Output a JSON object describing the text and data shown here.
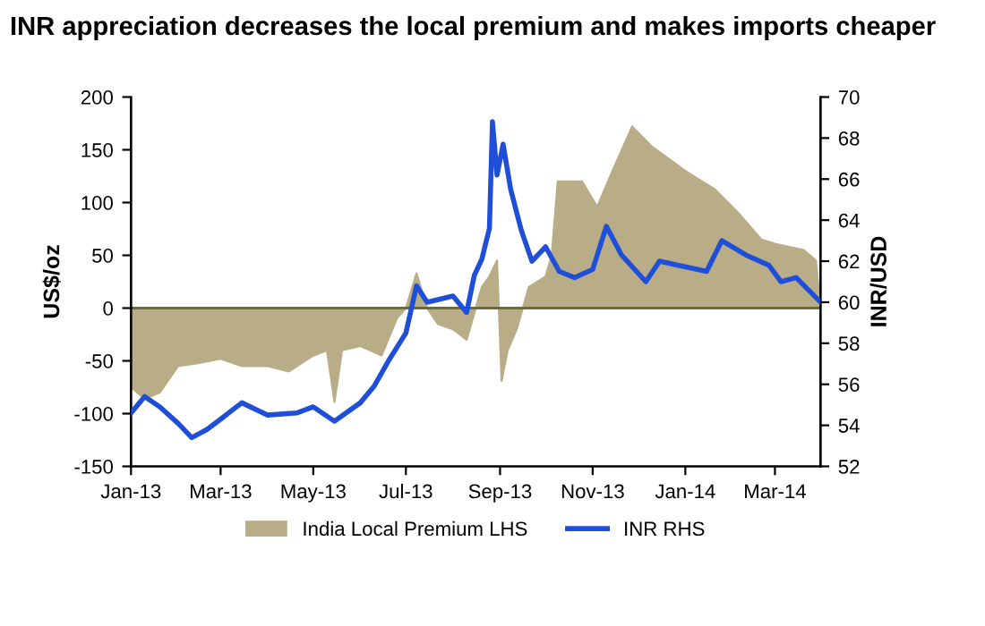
{
  "chart_data": {
    "type": "area",
    "title": "INR appreciation decreases the local premium and makes imports cheaper",
    "ylabel": "US$/oz",
    "y2label": "INR/USD",
    "xlim": [
      "2013-01-01",
      "2014-03-31"
    ],
    "xticks": [
      {
        "value": "2013-01-01",
        "label": "Jan-13"
      },
      {
        "value": "2013-03-01",
        "label": "Mar-13"
      },
      {
        "value": "2013-05-01",
        "label": "May-13"
      },
      {
        "value": "2013-07-01",
        "label": "Jul-13"
      },
      {
        "value": "2013-09-01",
        "label": "Sep-13"
      },
      {
        "value": "2013-11-01",
        "label": "Nov-13"
      },
      {
        "value": "2014-01-01",
        "label": "Jan-14"
      },
      {
        "value": "2014-03-01",
        "label": "Mar-14"
      }
    ],
    "ylim": [
      -150,
      200
    ],
    "yticks": [
      -150,
      -100,
      -50,
      0,
      50,
      100,
      150,
      200
    ],
    "y2lim": [
      52,
      70
    ],
    "y2ticks": [
      52,
      54,
      56,
      58,
      60,
      62,
      64,
      66,
      68,
      70
    ],
    "series": [
      {
        "name": "India Local Premium LHS",
        "color": "#b8ad86",
        "x": [
          "2013-01-01",
          "2013-01-10",
          "2013-01-20",
          "2013-02-01",
          "2013-02-15",
          "2013-03-01",
          "2013-03-15",
          "2013-04-01",
          "2013-04-15",
          "2013-05-01",
          "2013-05-10",
          "2013-05-15",
          "2013-05-20",
          "2013-06-01",
          "2013-06-15",
          "2013-06-25",
          "2013-07-01",
          "2013-07-08",
          "2013-07-15",
          "2013-07-22",
          "2013-08-01",
          "2013-08-10",
          "2013-08-20",
          "2013-08-25",
          "2013-08-30",
          "2013-09-02",
          "2013-09-06",
          "2013-09-12",
          "2013-09-20",
          "2013-10-01",
          "2013-10-05",
          "2013-10-09",
          "2013-10-25",
          "2013-11-04",
          "2013-11-14",
          "2013-11-27",
          "2013-12-10",
          "2014-01-01",
          "2014-01-20",
          "2014-02-05",
          "2014-02-20",
          "2014-03-01",
          "2014-03-20",
          "2014-03-28",
          "2014-03-31"
        ],
        "values": [
          -75,
          -86,
          -80,
          -55,
          -52,
          -48,
          -55,
          -55,
          -60,
          -45,
          -40,
          -89,
          -40,
          -36,
          -45,
          -10,
          0,
          33,
          0,
          -15,
          -20,
          -30,
          20,
          30,
          45,
          -69,
          -40,
          -20,
          20,
          30,
          50,
          120,
          120,
          96,
          130,
          172,
          153,
          130,
          113,
          90,
          65,
          61,
          55,
          45,
          0
        ]
      },
      {
        "name": "INR RHS",
        "type": "line",
        "axis": "y2",
        "color": "#1f4fd8",
        "x": [
          "2013-01-01",
          "2013-01-10",
          "2013-01-20",
          "2013-02-01",
          "2013-02-10",
          "2013-02-20",
          "2013-03-01",
          "2013-03-15",
          "2013-04-01",
          "2013-04-20",
          "2013-05-01",
          "2013-05-15",
          "2013-06-01",
          "2013-06-10",
          "2013-06-20",
          "2013-07-01",
          "2013-07-08",
          "2013-07-15",
          "2013-08-01",
          "2013-08-10",
          "2013-08-15",
          "2013-08-20",
          "2013-08-25",
          "2013-08-27",
          "2013-08-30",
          "2013-09-03",
          "2013-09-08",
          "2013-09-15",
          "2013-09-22",
          "2013-10-01",
          "2013-10-10",
          "2013-10-20",
          "2013-11-01",
          "2013-11-10",
          "2013-11-20",
          "2013-12-06",
          "2013-12-15",
          "2014-01-15",
          "2014-01-25",
          "2014-02-10",
          "2014-02-25",
          "2014-03-05",
          "2014-03-15",
          "2014-03-31"
        ],
        "values": [
          54.6,
          55.4,
          54.9,
          54.1,
          53.4,
          53.8,
          54.3,
          55.1,
          54.5,
          54.6,
          54.9,
          54.2,
          55.1,
          55.9,
          57.2,
          58.5,
          60.8,
          60.0,
          60.3,
          59.5,
          61.3,
          62.1,
          63.6,
          68.8,
          66.2,
          67.7,
          65.5,
          63.5,
          62.0,
          62.7,
          61.5,
          61.2,
          61.6,
          63.7,
          62.3,
          61.0,
          62.0,
          61.5,
          63.0,
          62.3,
          61.8,
          61.0,
          61.2,
          60.0
        ]
      }
    ],
    "ref_lines": [
      {
        "axis": "y",
        "value": 0,
        "color": "#6b6b3a"
      }
    ],
    "legend": "bottom",
    "grid": false
  }
}
